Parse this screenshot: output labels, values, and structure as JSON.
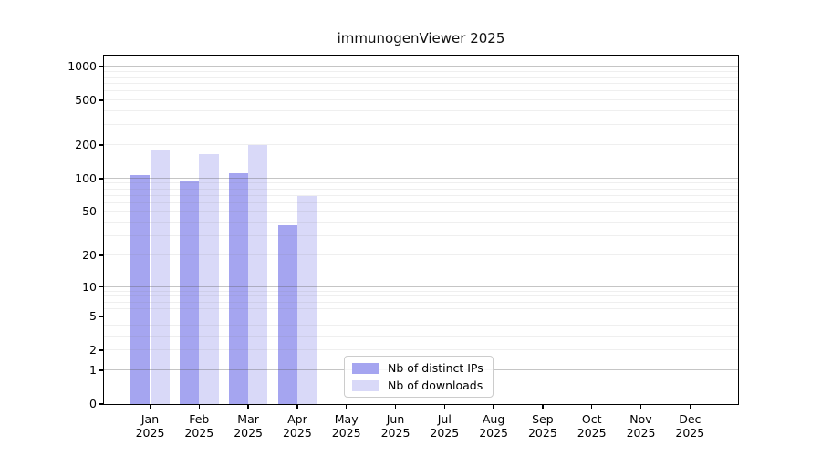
{
  "title": "immunogenViewer 2025",
  "chart_data": {
    "type": "bar",
    "title": "immunogenViewer 2025",
    "categories": [
      "Jan",
      "Feb",
      "Mar",
      "Apr",
      "May",
      "Jun",
      "Jul",
      "Aug",
      "Sep",
      "Oct",
      "Nov",
      "Dec"
    ],
    "category_year": "2025",
    "series": [
      {
        "name": "Nb of distinct IPs",
        "color": "#a5a5f0",
        "values": [
          107,
          94,
          111,
          38,
          0,
          0,
          0,
          0,
          0,
          0,
          0,
          0
        ]
      },
      {
        "name": "Nb of downloads",
        "color": "#d9d9f8",
        "values": [
          180,
          167,
          200,
          70,
          0,
          0,
          0,
          0,
          0,
          0,
          0,
          0
        ]
      }
    ],
    "yscale": "log10(value+1)",
    "yticks": [
      0,
      1,
      2,
      5,
      10,
      20,
      50,
      100,
      200,
      500,
      1000
    ],
    "ylim": [
      0,
      1240
    ],
    "grid": true,
    "legend_position": "lower center"
  }
}
